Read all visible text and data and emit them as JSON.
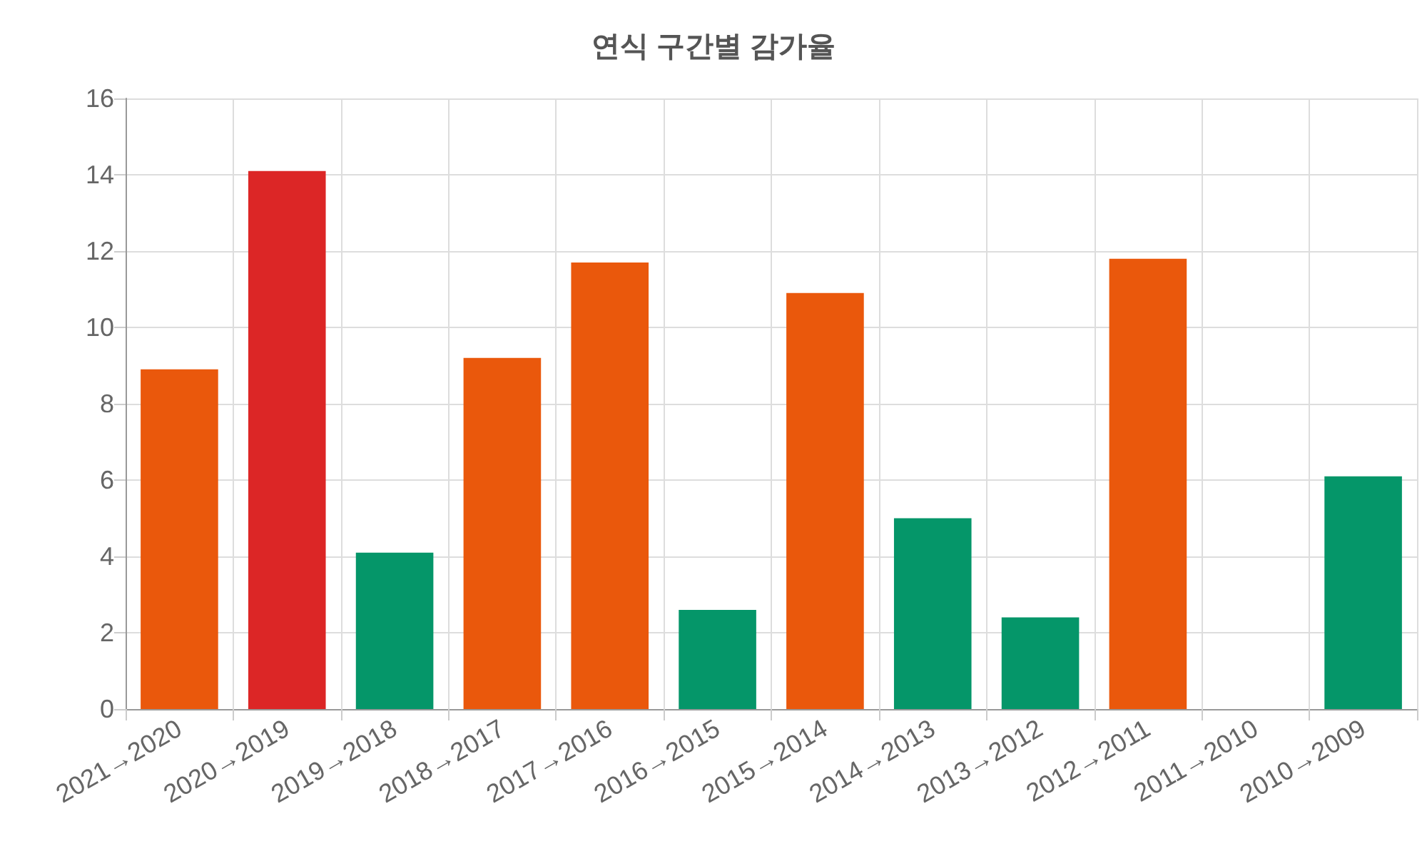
{
  "chart_data": {
    "type": "bar",
    "title": "연식 구간별 감가율",
    "categories": [
      "2021→2020",
      "2020→2019",
      "2019→2018",
      "2018→2017",
      "2017→2016",
      "2016→2015",
      "2015→2014",
      "2014→2013",
      "2013→2012",
      "2012→2011",
      "2011→2010",
      "2010→2009"
    ],
    "values": [
      8.9,
      14.1,
      4.1,
      9.2,
      11.7,
      2.6,
      10.9,
      5.0,
      2.4,
      11.8,
      0,
      6.1
    ],
    "colors": [
      "#ea580c",
      "#dc2626",
      "#059669",
      "#ea580c",
      "#ea580c",
      "#059669",
      "#ea580c",
      "#059669",
      "#059669",
      "#ea580c",
      "#059669",
      "#059669"
    ],
    "ylim": [
      0,
      16
    ],
    "yticks": [
      0,
      2,
      4,
      6,
      8,
      10,
      12,
      14,
      16
    ],
    "grid": true
  }
}
